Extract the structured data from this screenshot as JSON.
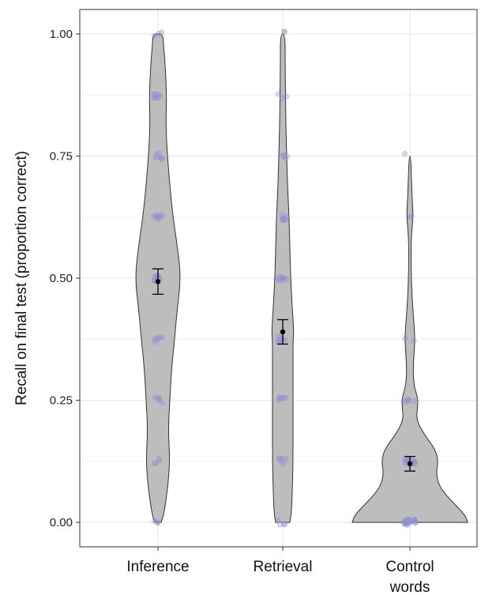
{
  "chart_data": {
    "type": "violin",
    "title": "",
    "xlabel": "",
    "ylabel": "Recall on final test (proportion correct)",
    "ylim": [
      -0.05,
      1.05
    ],
    "yticks": [
      0.0,
      0.25,
      0.5,
      0.75,
      1.0
    ],
    "ytick_labels": [
      "0.00",
      "0.25",
      "0.50",
      "0.75",
      "1.00"
    ],
    "grid": true,
    "categories": [
      {
        "label_lines": [
          "Inference"
        ],
        "mean": 0.493,
        "ci_low": 0.467,
        "ci_high": 0.519
      },
      {
        "label_lines": [
          "Retrieval"
        ],
        "mean": 0.39,
        "ci_low": 0.365,
        "ci_high": 0.415
      },
      {
        "label_lines": [
          "Control",
          "words"
        ],
        "mean": 0.12,
        "ci_low": 0.105,
        "ci_high": 0.135
      }
    ],
    "violin_fill": "#bdbdbd",
    "violin_stroke": "#333333",
    "point_color": "#8e8ed6",
    "mean_color": "#000000"
  }
}
